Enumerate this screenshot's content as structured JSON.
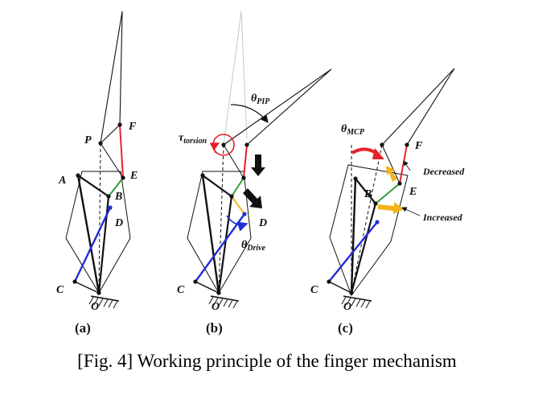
{
  "caption": "[Fig. 4] Working principle of the finger mechanism",
  "panels": {
    "a": {
      "tag": "(a)",
      "labels": {
        "A": "A",
        "B": "B",
        "C": "C",
        "D": "D",
        "E": "E",
        "F": "F",
        "O": "O",
        "P": "P"
      }
    },
    "b": {
      "tag": "(b)",
      "labels": {
        "C": "C",
        "D": "D",
        "O": "O"
      },
      "tau": "τ",
      "tau_sub": "torsion",
      "theta_pip": "θ",
      "theta_pip_sub": "PIP",
      "theta_drive": "θ",
      "theta_drive_sub": "Drive"
    },
    "c": {
      "tag": "(c)",
      "labels": {
        "B": "B",
        "C": "C",
        "E": "E",
        "F": "F",
        "O": "O"
      },
      "theta_mcp": "θ",
      "theta_mcp_sub": "MCP",
      "decreased": "Decreased",
      "increased": "Increased"
    }
  },
  "colors": {
    "link": "#111111",
    "red_link": "#e8202a",
    "green_link": "#2e9e3c",
    "blue_link": "#1f2fd6",
    "yellow_link": "#f0b323",
    "arrow_orange": "#f5b21a",
    "arrow_red": "#e8202a",
    "faded": "#c8c8c8"
  }
}
